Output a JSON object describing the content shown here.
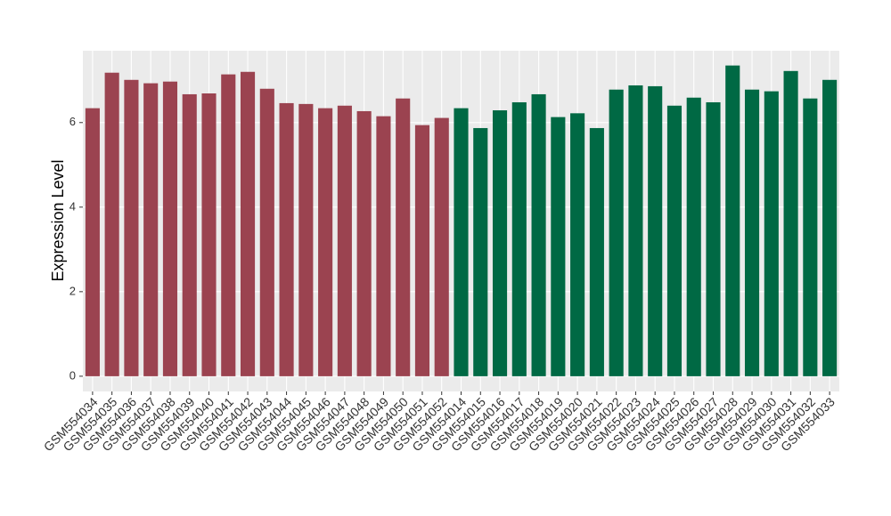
{
  "chart_data": {
    "type": "bar",
    "ylabel": "Expression Level",
    "categories": [
      "GSM554034",
      "GSM554035",
      "GSM554036",
      "GSM554037",
      "GSM554038",
      "GSM554039",
      "GSM554040",
      "GSM554041",
      "GSM554042",
      "GSM554043",
      "GSM554044",
      "GSM554045",
      "GSM554046",
      "GSM554047",
      "GSM554048",
      "GSM554049",
      "GSM554050",
      "GSM554051",
      "GSM554052",
      "GSM554014",
      "GSM554015",
      "GSM554016",
      "GSM554017",
      "GSM554018",
      "GSM554019",
      "GSM554020",
      "GSM554021",
      "GSM554022",
      "GSM554023",
      "GSM554024",
      "GSM554025",
      "GSM554026",
      "GSM554027",
      "GSM554028",
      "GSM554029",
      "GSM554030",
      "GSM554031",
      "GSM554032",
      "GSM554033"
    ],
    "values": [
      6.34,
      7.18,
      7.01,
      6.93,
      6.97,
      6.67,
      6.69,
      7.14,
      7.2,
      6.8,
      6.46,
      6.44,
      6.34,
      6.4,
      6.27,
      6.15,
      6.57,
      5.94,
      6.11,
      6.34,
      5.87,
      6.29,
      6.48,
      6.67,
      6.13,
      6.22,
      5.87,
      6.78,
      6.88,
      6.86,
      6.4,
      6.59,
      6.48,
      7.35,
      6.78,
      6.74,
      7.22,
      6.57,
      7.01
    ],
    "colors": [
      "#9b4350",
      "#9b4350",
      "#9b4350",
      "#9b4350",
      "#9b4350",
      "#9b4350",
      "#9b4350",
      "#9b4350",
      "#9b4350",
      "#9b4350",
      "#9b4350",
      "#9b4350",
      "#9b4350",
      "#9b4350",
      "#9b4350",
      "#9b4350",
      "#9b4350",
      "#9b4350",
      "#9b4350",
      "#006944",
      "#006944",
      "#006944",
      "#006944",
      "#006944",
      "#006944",
      "#006944",
      "#006944",
      "#006944",
      "#006944",
      "#006944",
      "#006944",
      "#006944",
      "#006944",
      "#006944",
      "#006944",
      "#006944",
      "#006944",
      "#006944",
      "#006944"
    ],
    "ylim": [
      -0.36,
      7.7
    ],
    "yticks": [
      0,
      2,
      4,
      6
    ],
    "grid": true
  }
}
